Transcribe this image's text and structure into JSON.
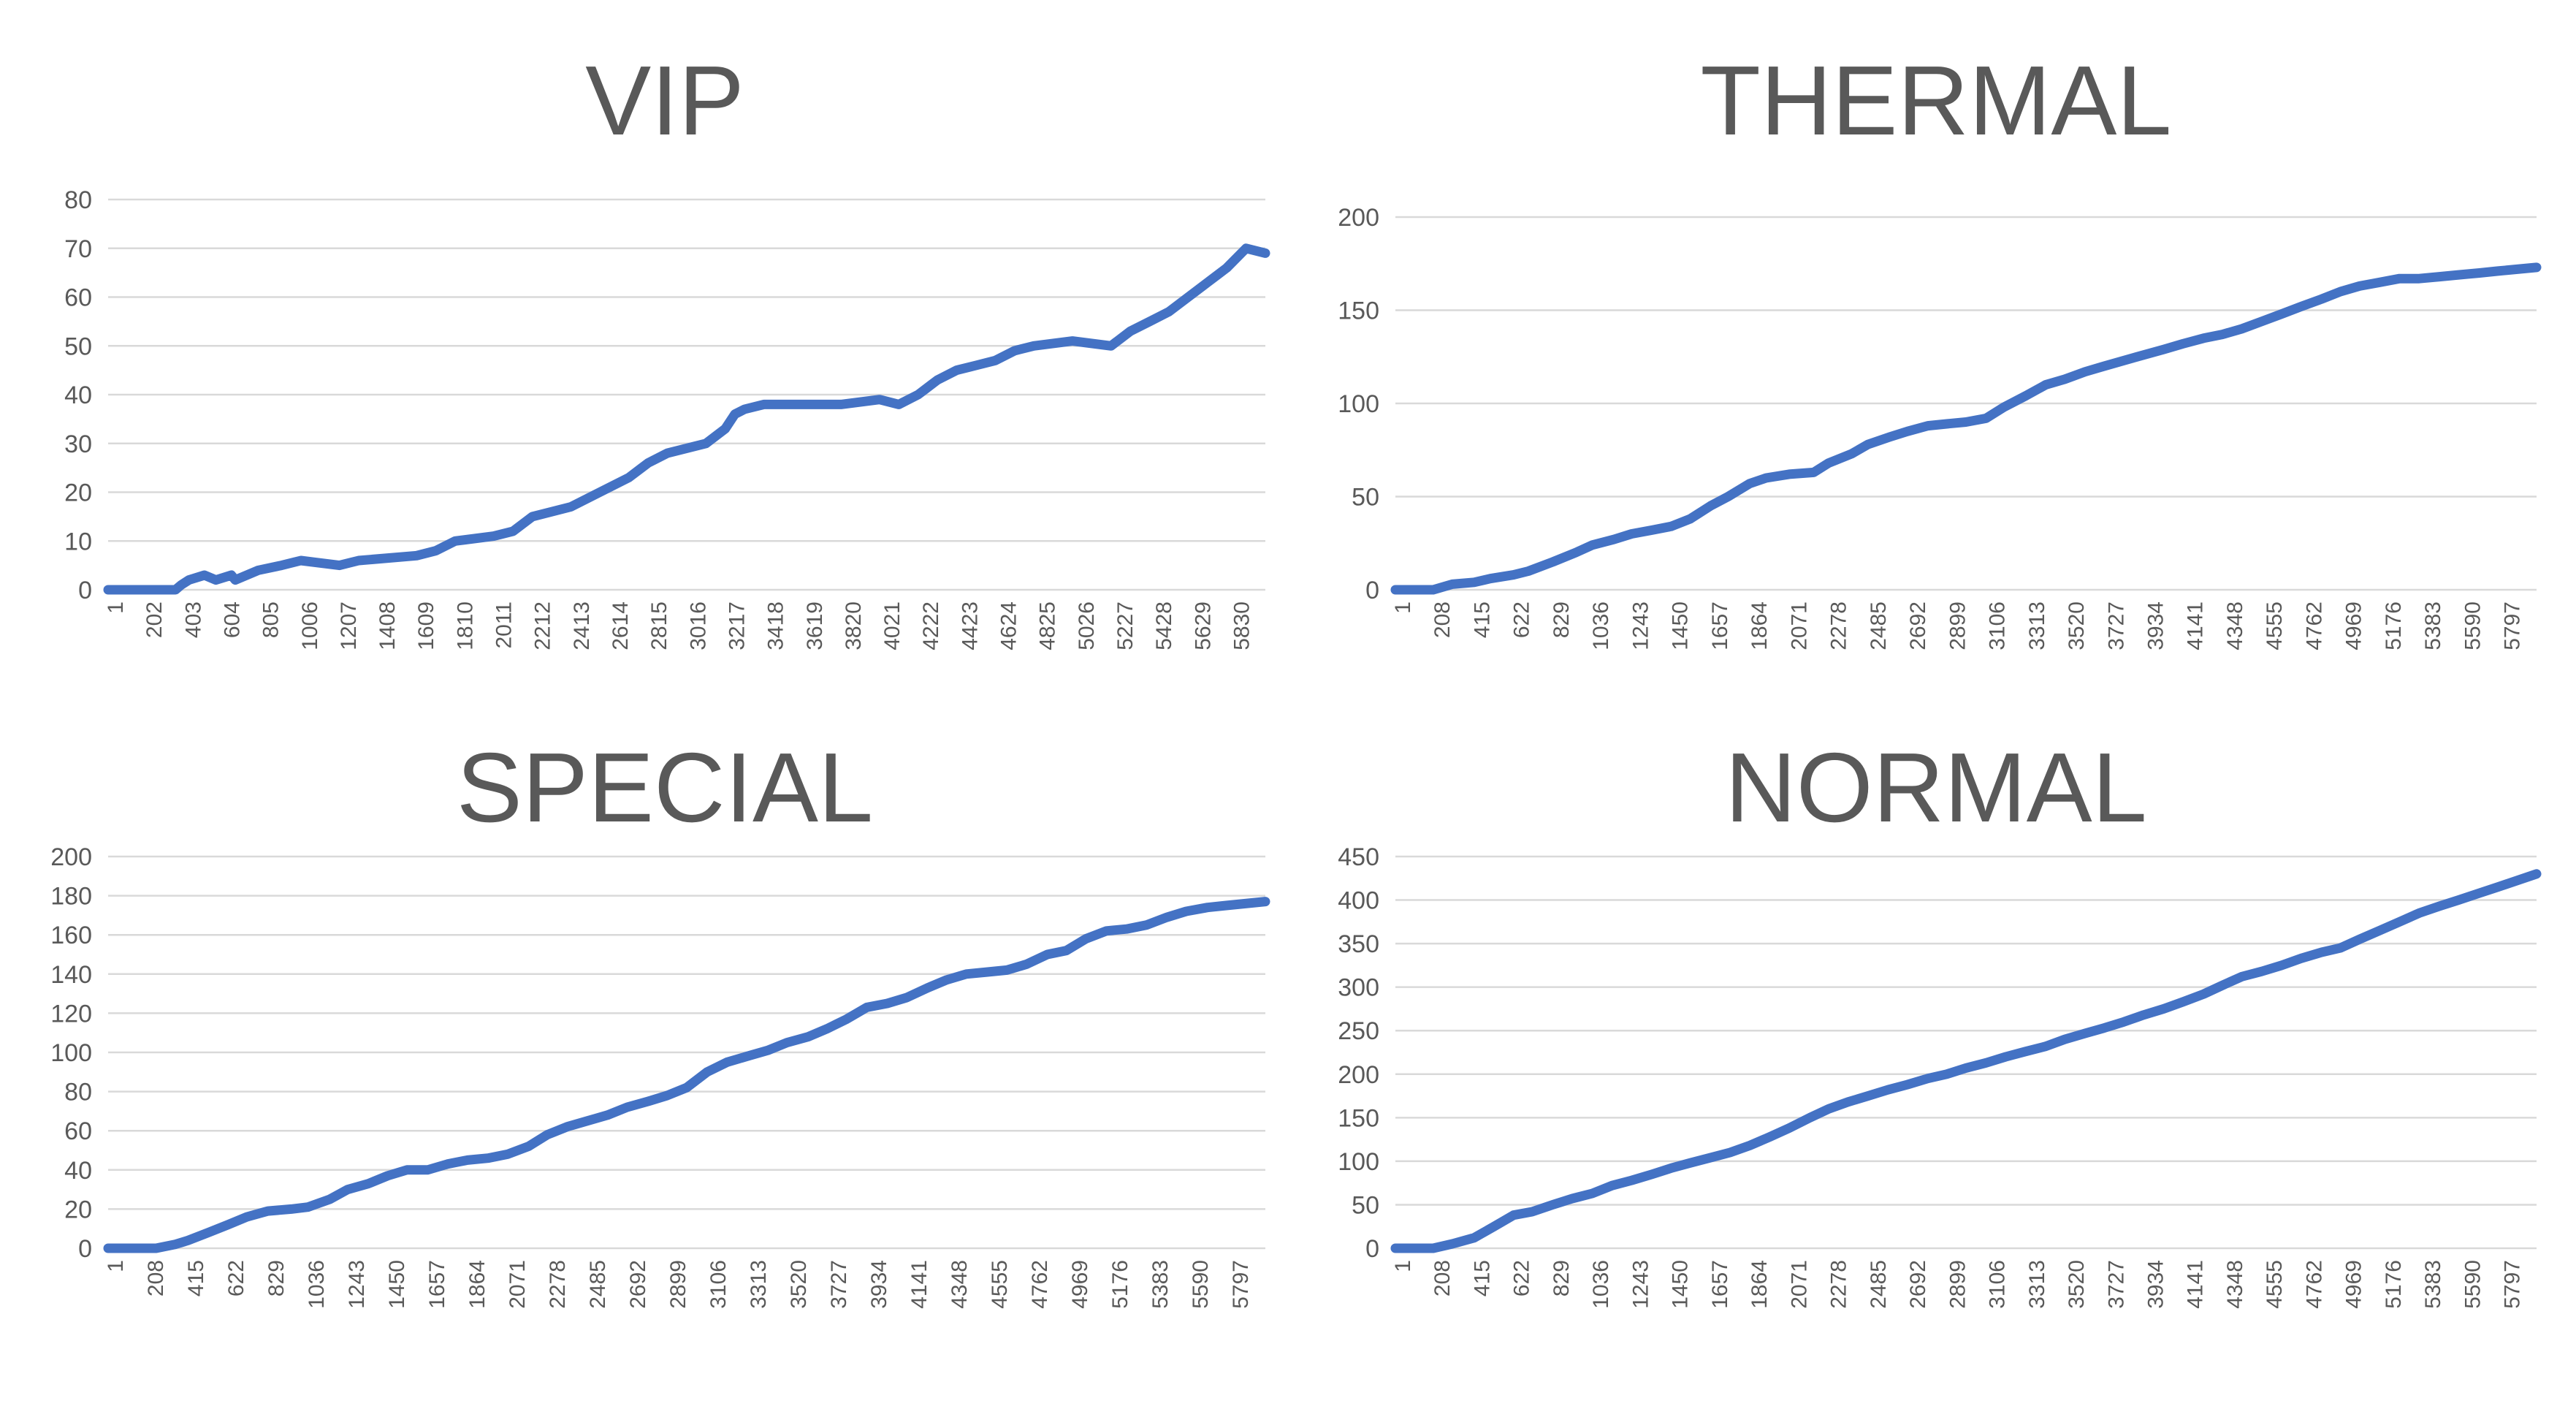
{
  "chart_data": [
    {
      "type": "line",
      "title": "VIP",
      "xlabel": "",
      "ylabel": "",
      "ylim": [
        0,
        80
      ],
      "yticks": [
        0,
        10,
        20,
        30,
        40,
        50,
        60,
        70,
        80
      ],
      "xlim": [
        1,
        6000
      ],
      "categories": [
        "1",
        "202",
        "403",
        "604",
        "805",
        "1006",
        "1207",
        "1408",
        "1609",
        "1810",
        "2011",
        "2212",
        "2413",
        "2614",
        "2815",
        "3016",
        "3217",
        "3418",
        "3619",
        "3820",
        "4021",
        "4222",
        "4423",
        "4624",
        "4825",
        "5026",
        "5227",
        "5428",
        "5629",
        "5830"
      ],
      "grid": "horizontal",
      "series_color": "#4472c4",
      "series": [
        {
          "x": [
            1,
            350,
            380,
            420,
            500,
            560,
            640,
            660,
            780,
            900,
            1000,
            1200,
            1300,
            1600,
            1700,
            1800,
            2000,
            2100,
            2200,
            2400,
            2550,
            2700,
            2800,
            2900,
            3000,
            3100,
            3200,
            3250,
            3300,
            3400,
            3600,
            3800,
            4000,
            4100,
            4200,
            4300,
            4400,
            4500,
            4600,
            4700,
            4800,
            5000,
            5200,
            5300,
            5400,
            5500,
            5600,
            5700,
            5800,
            5900,
            6000
          ],
          "values": [
            0,
            0,
            1,
            2,
            3,
            2,
            3,
            2,
            4,
            5,
            6,
            5,
            6,
            7,
            8,
            10,
            11,
            12,
            15,
            17,
            20,
            23,
            26,
            28,
            29,
            30,
            33,
            36,
            37,
            38,
            38,
            38,
            39,
            38,
            40,
            43,
            45,
            46,
            47,
            49,
            50,
            51,
            50,
            53,
            55,
            57,
            60,
            63,
            66,
            70,
            69
          ]
        }
      ]
    },
    {
      "type": "line",
      "title": "THERMAL",
      "xlabel": "",
      "ylabel": "",
      "ylim": [
        0,
        200
      ],
      "yticks": [
        0,
        50,
        100,
        150,
        200
      ],
      "xlim": [
        1,
        6000
      ],
      "categories": [
        "1",
        "208",
        "415",
        "622",
        "829",
        "1036",
        "1243",
        "1450",
        "1657",
        "1864",
        "2071",
        "2278",
        "2485",
        "2692",
        "2899",
        "3106",
        "3313",
        "3520",
        "3727",
        "3934",
        "4141",
        "4348",
        "4555",
        "4762",
        "4969",
        "5176",
        "5383",
        "5590",
        "5797"
      ],
      "grid": "horizontal",
      "series_color": "#4472c4",
      "series": [
        {
          "x": [
            1,
            200,
            300,
            415,
            500,
            622,
            700,
            829,
            950,
            1036,
            1150,
            1243,
            1350,
            1450,
            1550,
            1657,
            1750,
            1864,
            1950,
            2071,
            2200,
            2278,
            2400,
            2485,
            2600,
            2692,
            2800,
            2899,
            3000,
            3106,
            3200,
            3313,
            3420,
            3520,
            3627,
            3727,
            3830,
            3934,
            4040,
            4141,
            4250,
            4348,
            4450,
            4555,
            4660,
            4762,
            4870,
            4969,
            5070,
            5176,
            5280,
            5383,
            5490,
            5590,
            5700,
            5797,
            6000
          ],
          "values": [
            0,
            0,
            3,
            4,
            6,
            8,
            10,
            15,
            20,
            24,
            27,
            30,
            32,
            34,
            38,
            45,
            50,
            57,
            60,
            62,
            63,
            68,
            73,
            78,
            82,
            85,
            88,
            89,
            90,
            92,
            98,
            104,
            110,
            113,
            117,
            120,
            123,
            126,
            129,
            132,
            135,
            137,
            140,
            144,
            148,
            152,
            156,
            160,
            163,
            165,
            167,
            167,
            168,
            169,
            170,
            171,
            173
          ]
        }
      ]
    },
    {
      "type": "line",
      "title": "SPECIAL",
      "xlabel": "",
      "ylabel": "",
      "ylim": [
        0,
        200
      ],
      "yticks": [
        0,
        20,
        40,
        60,
        80,
        100,
        120,
        140,
        160,
        180,
        200
      ],
      "xlim": [
        1,
        6000
      ],
      "categories": [
        "1",
        "208",
        "415",
        "622",
        "829",
        "1036",
        "1243",
        "1450",
        "1657",
        "1864",
        "2071",
        "2278",
        "2485",
        "2692",
        "2899",
        "3106",
        "3313",
        "3520",
        "3727",
        "3934",
        "4141",
        "4348",
        "4555",
        "4762",
        "4969",
        "5176",
        "5383",
        "5590",
        "5797"
      ],
      "grid": "horizontal",
      "series_color": "#4472c4",
      "series": [
        {
          "x": [
            1,
            250,
            350,
            415,
            520,
            622,
            720,
            829,
            950,
            1036,
            1150,
            1243,
            1350,
            1450,
            1550,
            1657,
            1760,
            1864,
            1970,
            2071,
            2180,
            2278,
            2380,
            2485,
            2590,
            2692,
            2800,
            2899,
            3000,
            3106,
            3210,
            3313,
            3420,
            3520,
            3630,
            3727,
            3830,
            3934,
            4040,
            4141,
            4250,
            4348,
            4450,
            4555,
            4660,
            4762,
            4870,
            4969,
            5070,
            5176,
            5280,
            5383,
            5490,
            5590,
            5700,
            5797,
            6000
          ],
          "values": [
            0,
            0,
            2,
            4,
            8,
            12,
            16,
            19,
            20,
            21,
            25,
            30,
            33,
            37,
            40,
            40,
            43,
            45,
            46,
            48,
            52,
            58,
            62,
            65,
            68,
            72,
            75,
            78,
            82,
            90,
            95,
            98,
            101,
            105,
            108,
            112,
            117,
            123,
            125,
            128,
            133,
            137,
            140,
            141,
            142,
            145,
            150,
            152,
            158,
            162,
            163,
            165,
            169,
            172,
            174,
            175,
            177
          ]
        }
      ]
    },
    {
      "type": "line",
      "title": "NORMAL",
      "xlabel": "",
      "ylabel": "",
      "ylim": [
        0,
        450
      ],
      "yticks": [
        0,
        50,
        100,
        150,
        200,
        250,
        300,
        350,
        400,
        450
      ],
      "xlim": [
        1,
        6000
      ],
      "categories": [
        "1",
        "208",
        "415",
        "622",
        "829",
        "1036",
        "1243",
        "1450",
        "1657",
        "1864",
        "2071",
        "2278",
        "2485",
        "2692",
        "2899",
        "3106",
        "3313",
        "3520",
        "3727",
        "3934",
        "4141",
        "4348",
        "4555",
        "4762",
        "4969",
        "5176",
        "5383",
        "5590",
        "5797"
      ],
      "grid": "horizontal",
      "series_color": "#4472c4",
      "series": [
        {
          "x": [
            1,
            200,
            300,
            415,
            520,
            622,
            720,
            829,
            930,
            1036,
            1140,
            1243,
            1350,
            1450,
            1550,
            1657,
            1760,
            1864,
            1970,
            2071,
            2180,
            2278,
            2380,
            2485,
            2590,
            2692,
            2800,
            2899,
            3000,
            3106,
            3210,
            3313,
            3420,
            3520,
            3630,
            3727,
            3830,
            3934,
            4040,
            4141,
            4250,
            4348,
            4450,
            4555,
            4660,
            4762,
            4870,
            4969,
            5070,
            5176,
            5280,
            5383,
            5490,
            5590,
            5700,
            5797,
            6000
          ],
          "values": [
            0,
            0,
            5,
            12,
            25,
            38,
            42,
            50,
            57,
            63,
            72,
            78,
            85,
            92,
            98,
            104,
            110,
            118,
            128,
            138,
            150,
            160,
            168,
            175,
            182,
            188,
            195,
            200,
            207,
            213,
            220,
            226,
            232,
            240,
            247,
            253,
            260,
            268,
            275,
            283,
            292,
            302,
            312,
            318,
            325,
            333,
            340,
            345,
            355,
            365,
            375,
            385,
            393,
            400,
            408,
            415,
            430
          ]
        }
      ]
    }
  ]
}
